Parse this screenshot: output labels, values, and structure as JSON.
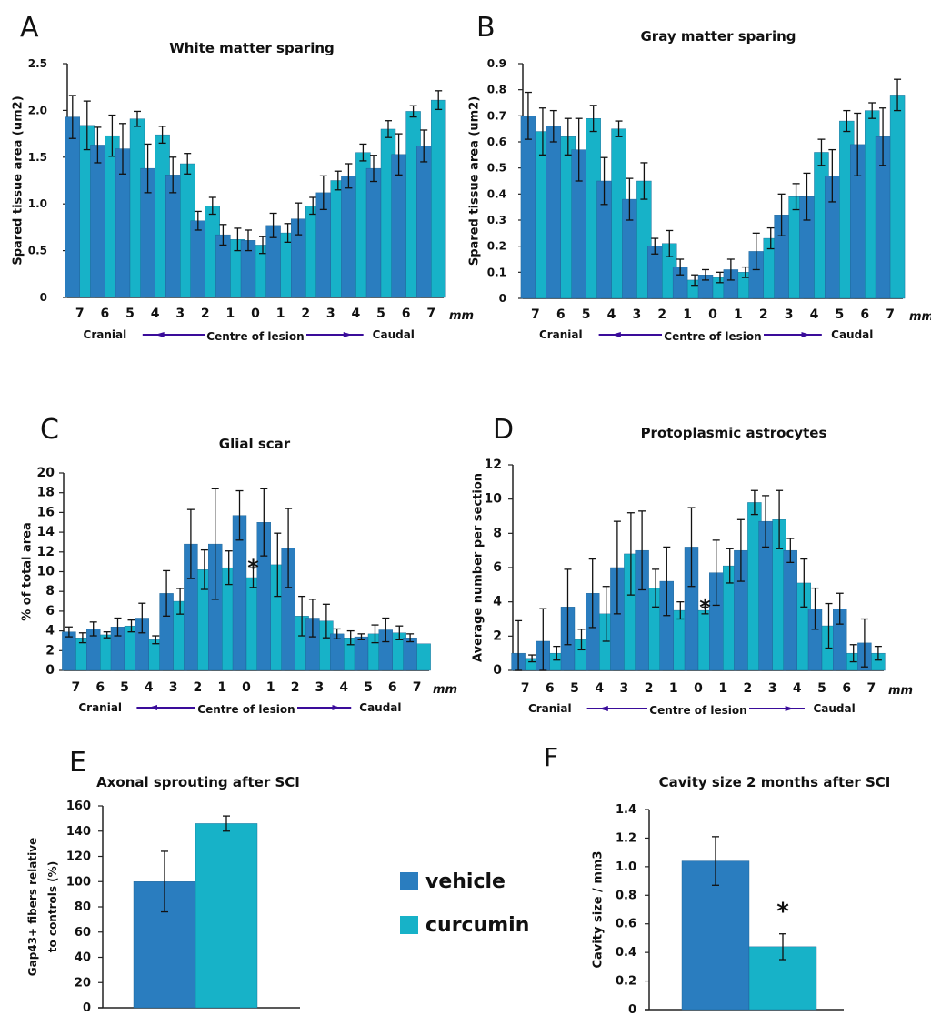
{
  "colors": {
    "vehicle": "#2a7dbf",
    "curcumin": "#17b2c8",
    "axis": "#222222",
    "arrow": "#3a0c9a"
  },
  "legend": {
    "items": [
      {
        "label": "vehicle",
        "color": "#2a7dbf"
      },
      {
        "label": "curcumin",
        "color": "#17b2c8"
      }
    ]
  },
  "chart_data": [
    {
      "id": "A",
      "panel_letter": "A",
      "type": "bar",
      "title": "White matter sparing",
      "ylabel": "Spared tissue area (um2)",
      "xlabel": "",
      "unit_label": "mm",
      "direction_labels": {
        "left": "Cranial",
        "center": "Centre of lesion",
        "right": "Caudal"
      },
      "categories": [
        "7",
        "6",
        "5",
        "4",
        "3",
        "2",
        "1",
        "0",
        "1",
        "2",
        "3",
        "4",
        "5",
        "6",
        "7"
      ],
      "ylim": [
        0,
        2.5
      ],
      "yticks": [
        "0",
        "0.5",
        "1.0",
        "1.5",
        "2.0",
        "2.5"
      ],
      "ytick_values": [
        0,
        0.5,
        1.0,
        1.5,
        2.0,
        2.5
      ],
      "series": [
        {
          "name": "vehicle",
          "values": [
            1.93,
            1.63,
            1.59,
            1.38,
            1.31,
            0.82,
            0.67,
            0.61,
            0.77,
            0.84,
            1.12,
            1.3,
            1.38,
            1.53,
            1.62
          ],
          "errors": [
            0.23,
            0.19,
            0.27,
            0.26,
            0.19,
            0.1,
            0.11,
            0.11,
            0.13,
            0.17,
            0.18,
            0.13,
            0.14,
            0.22,
            0.17
          ]
        },
        {
          "name": "curcumin",
          "values": [
            1.84,
            1.73,
            1.91,
            1.74,
            1.43,
            0.98,
            0.62,
            0.56,
            0.69,
            0.98,
            1.25,
            1.55,
            1.8,
            1.99,
            2.11
          ],
          "errors": [
            0.26,
            0.22,
            0.08,
            0.09,
            0.11,
            0.09,
            0.12,
            0.09,
            0.1,
            0.09,
            0.1,
            0.09,
            0.09,
            0.06,
            0.1
          ]
        }
      ],
      "annotations": []
    },
    {
      "id": "B",
      "panel_letter": "B",
      "type": "bar",
      "title": "Gray matter sparing",
      "ylabel": "Spared tissue area (um2)",
      "xlabel": "",
      "unit_label": "mm",
      "direction_labels": {
        "left": "Cranial",
        "center": "Centre of lesion",
        "right": "Caudal"
      },
      "categories": [
        "7",
        "6",
        "5",
        "4",
        "3",
        "2",
        "1",
        "0",
        "1",
        "2",
        "3",
        "4",
        "5",
        "6",
        "7"
      ],
      "ylim": [
        0,
        0.9
      ],
      "yticks": [
        "0",
        "0.1",
        "0.2",
        "0.3",
        "0.4",
        "0.5",
        "0.6",
        "0.7",
        "0.8",
        "0.9"
      ],
      "ytick_values": [
        0,
        0.1,
        0.2,
        0.3,
        0.4,
        0.5,
        0.6,
        0.7,
        0.8,
        0.9
      ],
      "series": [
        {
          "name": "vehicle",
          "values": [
            0.7,
            0.66,
            0.57,
            0.45,
            0.38,
            0.2,
            0.12,
            0.09,
            0.11,
            0.18,
            0.32,
            0.39,
            0.47,
            0.59,
            0.62
          ],
          "errors": [
            0.09,
            0.06,
            0.12,
            0.09,
            0.08,
            0.03,
            0.03,
            0.02,
            0.04,
            0.07,
            0.08,
            0.09,
            0.1,
            0.12,
            0.11
          ]
        },
        {
          "name": "curcumin",
          "values": [
            0.64,
            0.62,
            0.69,
            0.65,
            0.45,
            0.21,
            0.07,
            0.08,
            0.1,
            0.23,
            0.39,
            0.56,
            0.68,
            0.72,
            0.78
          ],
          "errors": [
            0.09,
            0.07,
            0.05,
            0.03,
            0.07,
            0.05,
            0.02,
            0.02,
            0.02,
            0.04,
            0.05,
            0.05,
            0.04,
            0.03,
            0.06
          ]
        }
      ],
      "annotations": []
    },
    {
      "id": "C",
      "panel_letter": "C",
      "type": "bar",
      "title": "Glial scar",
      "ylabel": "% of total area",
      "xlabel": "",
      "unit_label": "mm",
      "direction_labels": {
        "left": "Cranial",
        "center": "Centre of lesion",
        "right": "Caudal"
      },
      "categories": [
        "7",
        "6",
        "5",
        "4",
        "3",
        "2",
        "1",
        "0",
        "1",
        "2",
        "3",
        "4",
        "5",
        "6",
        "7"
      ],
      "ylim": [
        0,
        20
      ],
      "yticks": [
        "0",
        "2",
        "4",
        "6",
        "8",
        "10",
        "12",
        "14",
        "16",
        "18",
        "20"
      ],
      "ytick_values": [
        0,
        2,
        4,
        6,
        8,
        10,
        12,
        14,
        16,
        18,
        20
      ],
      "series": [
        {
          "name": "vehicle",
          "values": [
            3.9,
            4.2,
            4.4,
            5.3,
            7.8,
            12.8,
            12.8,
            15.7,
            15.0,
            12.4,
            5.3,
            3.7,
            3.4,
            4.1,
            3.3
          ],
          "errors": [
            0.5,
            0.7,
            0.9,
            1.5,
            2.3,
            3.5,
            5.6,
            2.5,
            3.4,
            4.0,
            1.9,
            0.5,
            0.3,
            1.2,
            0.4
          ]
        },
        {
          "name": "curcumin",
          "values": [
            3.3,
            3.6,
            4.5,
            3.1,
            7.0,
            10.2,
            10.4,
            9.4,
            10.7,
            5.5,
            5.0,
            3.3,
            3.7,
            3.8,
            2.7
          ],
          "errors": [
            0.5,
            0.3,
            0.6,
            0.4,
            1.3,
            2.0,
            1.7,
            1.0,
            3.2,
            2.0,
            1.7,
            0.7,
            0.9,
            0.7,
            0.0
          ]
        }
      ],
      "annotations": [
        {
          "category_index": 7,
          "series": "curcumin",
          "text": "*"
        }
      ]
    },
    {
      "id": "D",
      "panel_letter": "D",
      "type": "bar",
      "title": "Protoplasmic astrocytes",
      "ylabel": "Average number per section",
      "xlabel": "",
      "unit_label": "mm",
      "direction_labels": {
        "left": "Cranial",
        "center": "Centre of lesion",
        "right": "Caudal"
      },
      "categories": [
        "7",
        "6",
        "5",
        "4",
        "3",
        "2",
        "1",
        "0",
        "1",
        "2",
        "3",
        "4",
        "5",
        "6",
        "7"
      ],
      "ylim": [
        0,
        12
      ],
      "yticks": [
        "0",
        "2",
        "4",
        "6",
        "8",
        "10",
        "12"
      ],
      "ytick_values": [
        0,
        2,
        4,
        6,
        8,
        10,
        12
      ],
      "series": [
        {
          "name": "vehicle",
          "values": [
            1.0,
            1.7,
            3.7,
            4.5,
            6.0,
            7.0,
            5.2,
            7.2,
            5.7,
            7.0,
            8.7,
            7.0,
            3.6,
            3.6,
            1.6
          ],
          "errors": [
            1.9,
            1.9,
            2.2,
            2.0,
            2.7,
            2.3,
            2.0,
            2.3,
            1.9,
            1.8,
            1.5,
            0.7,
            1.2,
            0.9,
            1.4
          ]
        },
        {
          "name": "curcumin",
          "values": [
            0.7,
            1.0,
            1.8,
            3.3,
            6.8,
            4.8,
            3.5,
            3.5,
            6.1,
            9.8,
            8.8,
            5.1,
            2.6,
            1.0,
            1.0
          ],
          "errors": [
            0.2,
            0.4,
            0.6,
            1.6,
            2.4,
            1.1,
            0.5,
            0.2,
            1.0,
            0.7,
            1.7,
            1.4,
            1.3,
            0.5,
            0.4
          ]
        }
      ],
      "annotations": [
        {
          "category_index": 7,
          "series": "curcumin",
          "text": "*"
        }
      ]
    },
    {
      "id": "E",
      "panel_letter": "E",
      "type": "bar",
      "title": "Axonal sprouting after SCI",
      "ylabel": "Gap43+ fibers relative to controls  (%)",
      "ylabel_lines": [
        "Gap43+ fibers relative",
        "to controls  (%)"
      ],
      "xlabel": "",
      "categories": [
        ""
      ],
      "ylim": [
        0,
        160
      ],
      "yticks": [
        "0",
        "20",
        "40",
        "60",
        "80",
        "100",
        "120",
        "140",
        "160"
      ],
      "ytick_values": [
        0,
        20,
        40,
        60,
        80,
        100,
        120,
        140,
        160
      ],
      "series": [
        {
          "name": "vehicle",
          "values": [
            100
          ],
          "errors": [
            24
          ]
        },
        {
          "name": "curcumin",
          "values": [
            146
          ],
          "errors": [
            6
          ]
        }
      ],
      "annotations": []
    },
    {
      "id": "F",
      "panel_letter": "F",
      "type": "bar",
      "title": "Cavity size 2 months after SCI",
      "ylabel": "Cavity size / mm3",
      "xlabel": "",
      "categories": [
        ""
      ],
      "ylim": [
        0,
        1.4
      ],
      "yticks": [
        "0",
        "0.2",
        "0.4",
        "0.6",
        "0.8",
        "1.0",
        "1.2",
        "1.4"
      ],
      "ytick_values": [
        0,
        0.2,
        0.4,
        0.6,
        0.8,
        1.0,
        1.2,
        1.4
      ],
      "series": [
        {
          "name": "vehicle",
          "values": [
            1.04
          ],
          "errors": [
            0.17
          ]
        },
        {
          "name": "curcumin",
          "values": [
            0.44
          ],
          "errors": [
            0.09
          ]
        }
      ],
      "annotations": [
        {
          "category_index": 0,
          "series": "curcumin",
          "text": "*"
        }
      ]
    }
  ]
}
